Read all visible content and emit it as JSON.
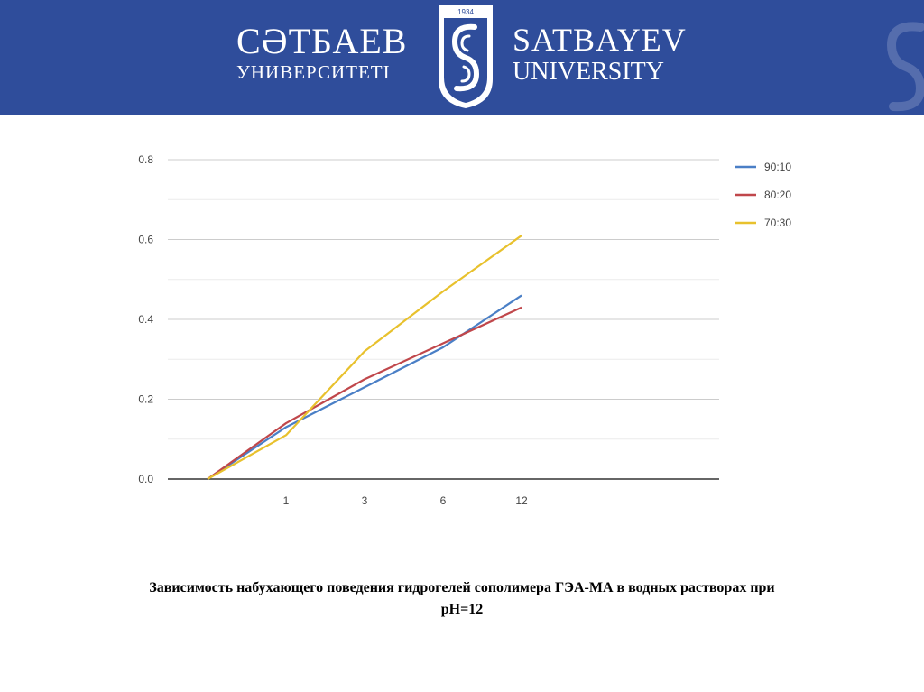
{
  "header": {
    "brand_kz_line1": "СӘТБАЕВ",
    "brand_kz_line2": "УНИВЕРСИТЕТІ",
    "brand_en_line1": "SATBAYEV",
    "brand_en_line2": "UNIVERSITY",
    "emblem_year": "1934",
    "background_color": "#2f4d9b"
  },
  "chart_data": {
    "type": "line",
    "categories": [
      "",
      "1",
      "3",
      "6",
      "12"
    ],
    "ylim": [
      0,
      0.8
    ],
    "yticks": [
      "0.0",
      "0.2",
      "0.4",
      "0.6",
      "0.8"
    ],
    "grid": true,
    "legend_position": "right",
    "series": [
      {
        "name": "90:10",
        "color": "#4a7fc6",
        "values": [
          0,
          0.13,
          0.23,
          0.33,
          0.46
        ]
      },
      {
        "name": "80:20",
        "color": "#c0474b",
        "values": [
          0,
          0.14,
          0.25,
          0.34,
          0.43
        ]
      },
      {
        "name": "70:30",
        "color": "#e8c12d",
        "values": [
          0,
          0.11,
          0.32,
          0.47,
          0.61
        ]
      }
    ]
  },
  "caption": {
    "line1": "Зависимость набухающего поведения гидрогелей сополимера ГЭА-МА в  водных растворах при",
    "line2": "pH=12"
  }
}
